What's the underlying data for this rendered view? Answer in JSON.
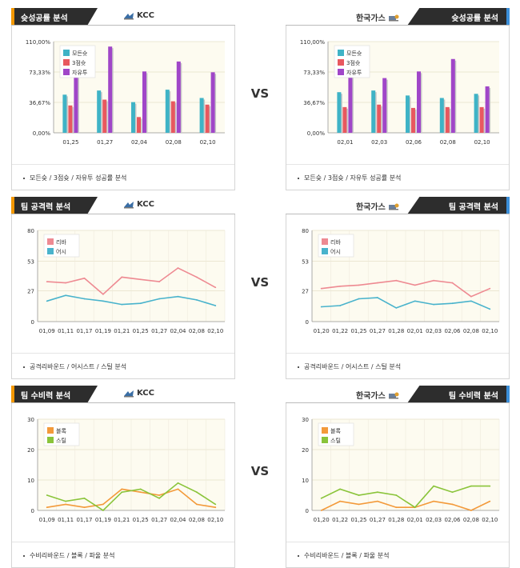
{
  "vs_label": "VS",
  "colors": {
    "header_bg": "#2d2d2d",
    "home_accent": "#f39800",
    "away_accent": "#3b8fd9",
    "plot_bg": "#fdfbf0",
    "bar_all": "#3fb3c6",
    "bar_3pt": "#e8585f",
    "bar_ft": "#a046c8",
    "line_reb": "#ee8a92",
    "line_ast": "#49b3cc",
    "line_blk": "#f39a3a",
    "line_stl": "#8ac43a"
  },
  "panels": [
    {
      "id": "success-home",
      "title": "슛성공률 분석",
      "team": "KCC",
      "side": "left",
      "footer": "모든슛 / 3점슛 / 자유투 성공률 분석",
      "chart_data": {
        "type": "bar",
        "ylim": [
          0,
          110
        ],
        "y_ticks": [
          "0,00%",
          "36,67%",
          "73,33%",
          "110,00%"
        ],
        "y_tick_values": [
          0,
          36.67,
          73.33,
          110
        ],
        "categories": [
          "01,25",
          "01,27",
          "02,04",
          "02,08",
          "02,10"
        ],
        "series": [
          {
            "name": "모든슛",
            "values": [
              46,
              51,
              37,
              52,
              42
            ]
          },
          {
            "name": "3점슛",
            "values": [
              33,
              40,
              19,
              38,
              34
            ]
          },
          {
            "name": "자유투",
            "values": [
              70,
              104,
              74,
              86,
              73
            ]
          }
        ]
      }
    },
    {
      "id": "success-away",
      "title": "슛성공률 분석",
      "team": "한국가스",
      "side": "right",
      "footer": "모든슛 / 3점슛 / 자유투 성공률 분석",
      "chart_data": {
        "type": "bar",
        "ylim": [
          0,
          110
        ],
        "y_ticks": [
          "0,00%",
          "36,67%",
          "73,33%",
          "110,00%"
        ],
        "y_tick_values": [
          0,
          36.67,
          73.33,
          110
        ],
        "categories": [
          "02,01",
          "02,03",
          "02,06",
          "02,08",
          "02,10"
        ],
        "series": [
          {
            "name": "모든슛",
            "values": [
              49,
              51,
              45,
              42,
              47
            ]
          },
          {
            "name": "3점슛",
            "values": [
              31,
              34,
              30,
              31,
              31
            ]
          },
          {
            "name": "자유투",
            "values": [
              73,
              66,
              74,
              89,
              56
            ]
          }
        ]
      }
    },
    {
      "id": "attack-home",
      "title": "팀 공격력 분석",
      "team": "KCC",
      "side": "left",
      "footer": "공격리바운드 / 어시스트 / 스틸 분석",
      "chart_data": {
        "type": "line",
        "ylim": [
          0,
          80
        ],
        "y_ticks": [
          "0",
          "27",
          "53",
          "80"
        ],
        "y_tick_values": [
          0,
          27,
          53,
          80
        ],
        "x": [
          "01,09",
          "01,11",
          "01,17",
          "01,19",
          "01,21",
          "01,25",
          "01,27",
          "02,04",
          "02,08",
          "02,10"
        ],
        "series": [
          {
            "name": "리바",
            "values": [
              35,
              34,
              38,
              24,
              39,
              37,
              35,
              47,
              39,
              30
            ]
          },
          {
            "name": "어시",
            "values": [
              18,
              23,
              20,
              18,
              15,
              16,
              20,
              22,
              19,
              14
            ]
          }
        ]
      }
    },
    {
      "id": "attack-away",
      "title": "팀 공격력 분석",
      "team": "한국가스",
      "side": "right",
      "footer": "공격리바운드 / 어시스트 / 스틸 분석",
      "chart_data": {
        "type": "line",
        "ylim": [
          0,
          80
        ],
        "y_ticks": [
          "0",
          "27",
          "53",
          "80"
        ],
        "y_tick_values": [
          0,
          27,
          53,
          80
        ],
        "x": [
          "01,20",
          "01,22",
          "01,25",
          "01,27",
          "01,28",
          "02,01",
          "02,03",
          "02,06",
          "02,08",
          "02,10"
        ],
        "series": [
          {
            "name": "리바",
            "values": [
              29,
              31,
              32,
              34,
              36,
              32,
              36,
              34,
              22,
              29
            ]
          },
          {
            "name": "어시",
            "values": [
              13,
              14,
              20,
              21,
              12,
              18,
              15,
              16,
              18,
              11
            ]
          }
        ]
      }
    },
    {
      "id": "defense-home",
      "title": "팀 수비력 분석",
      "team": "KCC",
      "side": "left",
      "footer": "수비리바운드 / 블록 / 파울 분석",
      "chart_data": {
        "type": "line",
        "ylim": [
          0,
          30
        ],
        "y_ticks": [
          "0",
          "10",
          "20",
          "30"
        ],
        "y_tick_values": [
          0,
          10,
          20,
          30
        ],
        "x": [
          "01,09",
          "01,11",
          "01,17",
          "01,19",
          "01,21",
          "01,25",
          "01,27",
          "02,04",
          "02,08",
          "02,10"
        ],
        "series": [
          {
            "name": "블록",
            "values": [
              1,
              2,
              1,
              2,
              7,
              6,
              5,
              7,
              2,
              1
            ]
          },
          {
            "name": "스틸",
            "values": [
              5,
              3,
              4,
              0,
              6,
              7,
              4,
              9,
              6,
              2
            ]
          }
        ]
      }
    },
    {
      "id": "defense-away",
      "title": "팀 수비력 분석",
      "team": "한국가스",
      "side": "right",
      "footer": "수비리바운드 / 블록 / 파울 분석",
      "chart_data": {
        "type": "line",
        "ylim": [
          0,
          30
        ],
        "y_ticks": [
          "0",
          "10",
          "20",
          "30"
        ],
        "y_tick_values": [
          0,
          10,
          20,
          30
        ],
        "x": [
          "01,20",
          "01,22",
          "01,25",
          "01,27",
          "01,28",
          "02,01",
          "02,03",
          "02,06",
          "02,08",
          "02,10"
        ],
        "series": [
          {
            "name": "블록",
            "values": [
              0,
              3,
              2,
              3,
              1,
              1,
              3,
              2,
              0,
              3
            ]
          },
          {
            "name": "스틸",
            "values": [
              4,
              7,
              5,
              6,
              5,
              1,
              8,
              6,
              8,
              8
            ]
          }
        ]
      }
    }
  ]
}
